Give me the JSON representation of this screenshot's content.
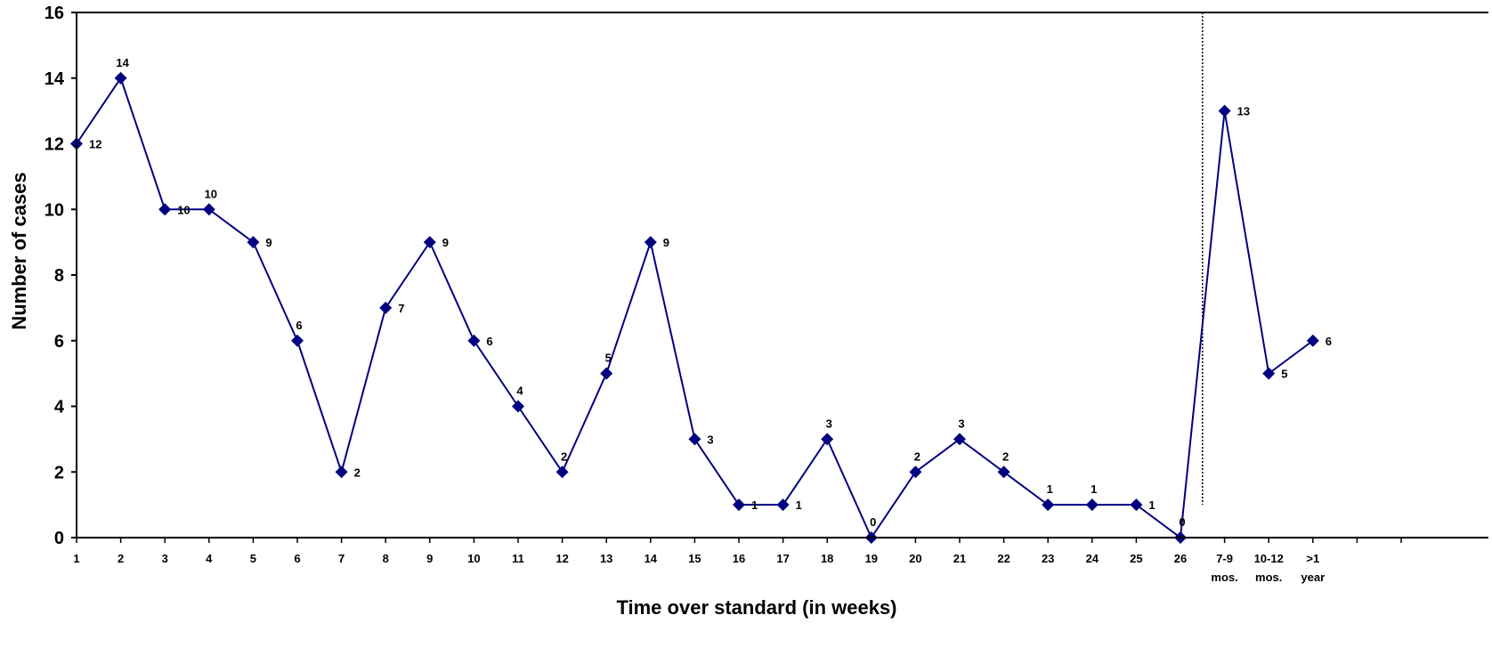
{
  "chart_data": {
    "type": "line",
    "title": "",
    "xlabel": "Time over standard (in weeks)",
    "ylabel": "Number of cases",
    "ylim": [
      0,
      16
    ],
    "y_ticks": [
      "0",
      "2",
      "4",
      "6",
      "8",
      "10",
      "12",
      "14",
      "16"
    ],
    "categories": [
      [
        "1"
      ],
      [
        "2"
      ],
      [
        "3"
      ],
      [
        "4"
      ],
      [
        "5"
      ],
      [
        "6"
      ],
      [
        "7"
      ],
      [
        "8"
      ],
      [
        "9"
      ],
      [
        "10"
      ],
      [
        "11"
      ],
      [
        "12"
      ],
      [
        "13"
      ],
      [
        "14"
      ],
      [
        "15"
      ],
      [
        "16"
      ],
      [
        "17"
      ],
      [
        "18"
      ],
      [
        "19"
      ],
      [
        "20"
      ],
      [
        "21"
      ],
      [
        "22"
      ],
      [
        "23"
      ],
      [
        "24"
      ],
      [
        "25"
      ],
      [
        "26"
      ],
      [
        "7-9",
        "mos."
      ],
      [
        "10-12",
        "mos."
      ],
      [
        ">1",
        "year"
      ]
    ],
    "values": [
      12,
      14,
      10,
      10,
      9,
      6,
      2,
      7,
      9,
      6,
      4,
      2,
      5,
      9,
      3,
      1,
      1,
      3,
      0,
      2,
      3,
      2,
      1,
      1,
      1,
      0,
      13,
      5,
      6
    ],
    "data_labels": [
      "12",
      "14",
      "10",
      "10",
      "9",
      "6",
      "2",
      "7",
      "9",
      "6",
      "4",
      "2",
      "5",
      "9",
      "3",
      "1",
      "1",
      "3",
      "0",
      "2",
      "3",
      "2",
      "1",
      "1",
      "1",
      "0",
      "13",
      "5",
      "6"
    ],
    "series_color": "#000080",
    "marker": "diamond",
    "grid": false,
    "legend": "none",
    "separator": "dotted vertical line between 26 and 7-9 mos."
  }
}
